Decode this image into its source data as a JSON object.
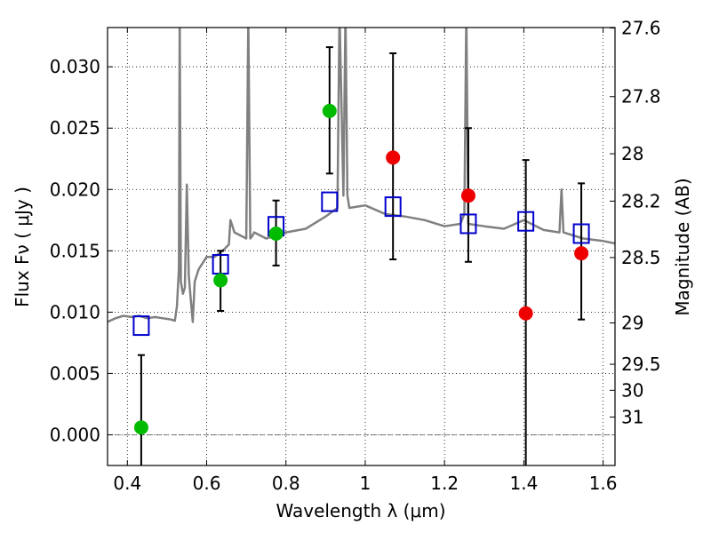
{
  "chart_data": {
    "type": "scatter",
    "xlabel": "Wavelength  λ (μm)",
    "ylabel_left": "Flux  Fν  ( μJy )",
    "ylabel_right": "Magnitude (AB)",
    "xlim": [
      0.35,
      1.63
    ],
    "ylim": [
      -0.0025,
      0.0332
    ],
    "grid": true,
    "x_ticks": [
      {
        "v": 0.4,
        "label": "0.4"
      },
      {
        "v": 0.6,
        "label": "0.6"
      },
      {
        "v": 0.8,
        "label": "0.8"
      },
      {
        "v": 1.0,
        "label": "1"
      },
      {
        "v": 1.2,
        "label": "1.2"
      },
      {
        "v": 1.4,
        "label": "1.4"
      },
      {
        "v": 1.6,
        "label": "1.6"
      }
    ],
    "y_ticks": [
      {
        "v": 0.0,
        "label": "0.000"
      },
      {
        "v": 0.005,
        "label": "0.005"
      },
      {
        "v": 0.01,
        "label": "0.010"
      },
      {
        "v": 0.015,
        "label": "0.015"
      },
      {
        "v": 0.02,
        "label": "0.020"
      },
      {
        "v": 0.025,
        "label": "0.025"
      },
      {
        "v": 0.03,
        "label": "0.030"
      }
    ],
    "mag_ticks": [
      {
        "v": 0.03316,
        "label": "27.6"
      },
      {
        "v": 0.02757,
        "label": "27.8"
      },
      {
        "v": 0.02291,
        "label": "28"
      },
      {
        "v": 0.01905,
        "label": "28.2"
      },
      {
        "v": 0.01445,
        "label": "28.5"
      },
      {
        "v": 0.00912,
        "label": "29"
      },
      {
        "v": 0.00575,
        "label": "29.5"
      },
      {
        "v": 0.00363,
        "label": "30"
      },
      {
        "v": 0.00145,
        "label": "31"
      }
    ],
    "template_spectrum": {
      "color": "#808080",
      "x": [
        0.35,
        0.37,
        0.39,
        0.41,
        0.43,
        0.45,
        0.47,
        0.49,
        0.51,
        0.52,
        0.525,
        0.53,
        0.532,
        0.535,
        0.54,
        0.545,
        0.55,
        0.555,
        0.56,
        0.565,
        0.57,
        0.58,
        0.59,
        0.6,
        0.62,
        0.64,
        0.656,
        0.66,
        0.67,
        0.7,
        0.705,
        0.71,
        0.715,
        0.72,
        0.75,
        0.8,
        0.85,
        0.9,
        0.93,
        0.935,
        0.945,
        0.95,
        0.955,
        0.96,
        0.98,
        1.0,
        1.05,
        1.1,
        1.15,
        1.2,
        1.24,
        1.25,
        1.255,
        1.26,
        1.3,
        1.35,
        1.4,
        1.45,
        1.49,
        1.495,
        1.5,
        1.55,
        1.6,
        1.63
      ],
      "y": [
        0.0092,
        0.0095,
        0.0097,
        0.0096,
        0.0097,
        0.0095,
        0.0096,
        0.0095,
        0.0094,
        0.0093,
        0.0105,
        0.0135,
        0.0345,
        0.0125,
        0.0115,
        0.012,
        0.0204,
        0.013,
        0.011,
        0.0092,
        0.0125,
        0.0135,
        0.014,
        0.0145,
        0.0145,
        0.015,
        0.0155,
        0.0175,
        0.0165,
        0.016,
        0.034,
        0.016,
        0.0162,
        0.0165,
        0.016,
        0.0165,
        0.0168,
        0.0178,
        0.0185,
        0.0345,
        0.0195,
        0.0345,
        0.0195,
        0.0185,
        0.0186,
        0.0187,
        0.018,
        0.0178,
        0.0175,
        0.017,
        0.0172,
        0.018,
        0.0345,
        0.0172,
        0.017,
        0.0168,
        0.0175,
        0.0167,
        0.0165,
        0.02,
        0.0165,
        0.016,
        0.0158,
        0.0156
      ]
    },
    "template_photometry": {
      "color": "#0000cc",
      "x": [
        0.435,
        0.635,
        0.775,
        0.91,
        1.07,
        1.26,
        1.405,
        1.545
      ],
      "y": [
        0.0089,
        0.0139,
        0.017,
        0.019,
        0.0186,
        0.0172,
        0.0174,
        0.0164
      ]
    },
    "observed_green": {
      "color": "#00bb00",
      "x": [
        0.435,
        0.635,
        0.775,
        0.91
      ],
      "y": [
        0.0006,
        0.0126,
        0.0164,
        0.0264
      ],
      "err_low": [
        -0.0025,
        0.0101,
        0.0138,
        0.0213
      ],
      "err_high": [
        0.0065,
        0.015,
        0.0191,
        0.0316
      ]
    },
    "observed_red": {
      "color": "#ee0000",
      "x": [
        1.07,
        1.26,
        1.405,
        1.545
      ],
      "y": [
        0.0226,
        0.0195,
        0.0099,
        0.0148
      ],
      "err_low": [
        0.0143,
        0.0141,
        -0.0025,
        0.0094
      ],
      "err_high": [
        0.0311,
        0.025,
        0.0224,
        0.0205
      ]
    }
  }
}
